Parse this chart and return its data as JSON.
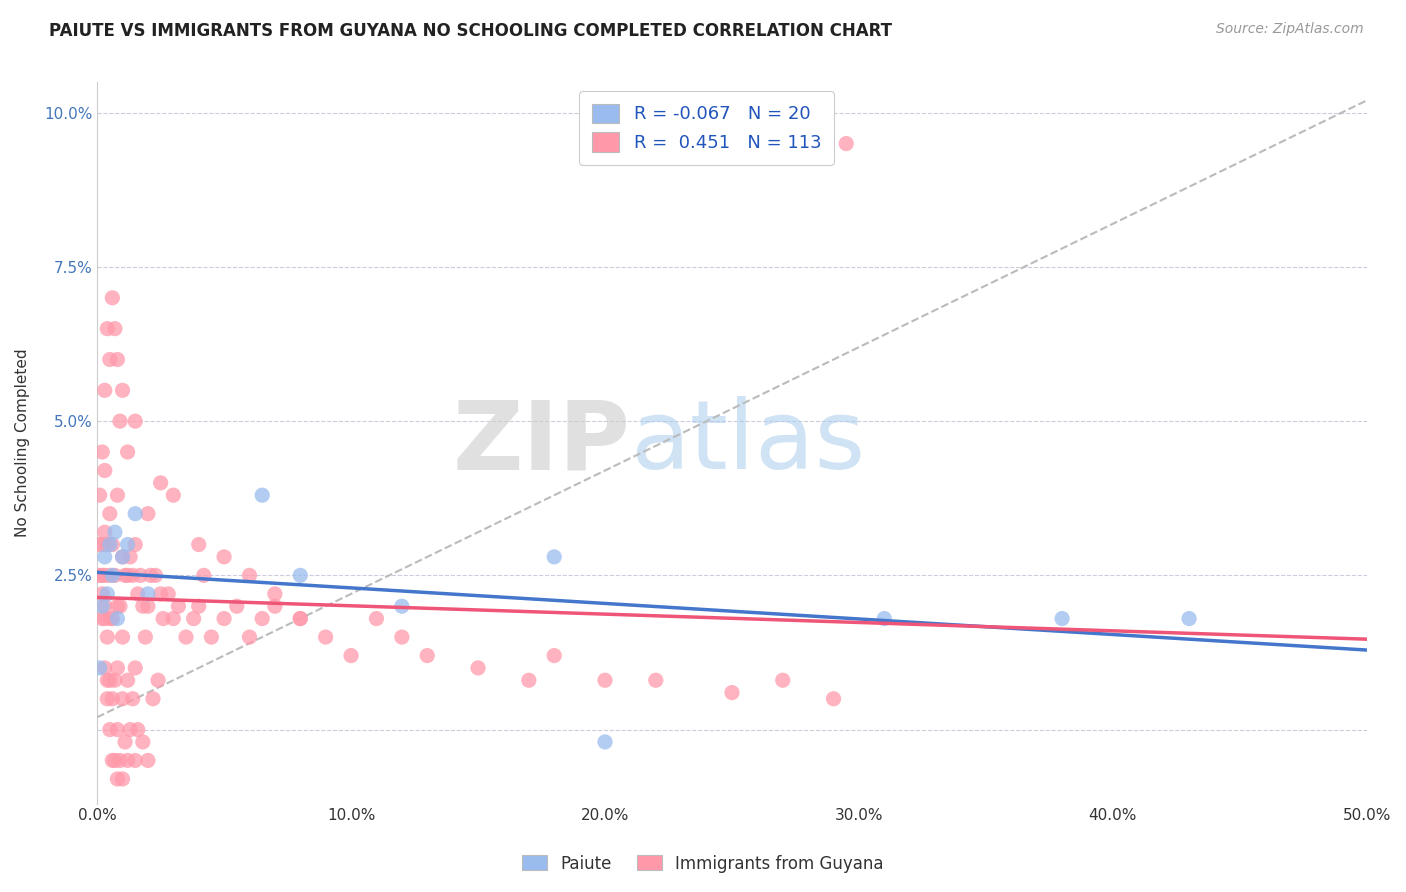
{
  "title": "PAIUTE VS IMMIGRANTS FROM GUYANA NO SCHOOLING COMPLETED CORRELATION CHART",
  "source": "Source: ZipAtlas.com",
  "ylabel": "No Schooling Completed",
  "xlim": [
    0.0,
    0.5
  ],
  "ylim": [
    -0.012,
    0.105
  ],
  "xticks": [
    0.0,
    0.1,
    0.2,
    0.3,
    0.4,
    0.5
  ],
  "xtick_labels": [
    "0.0%",
    "10.0%",
    "20.0%",
    "30.0%",
    "40.0%",
    "50.0%"
  ],
  "yticks": [
    0.0,
    0.025,
    0.05,
    0.075,
    0.1
  ],
  "ytick_labels": [
    "",
    "2.5%",
    "5.0%",
    "7.5%",
    "10.0%"
  ],
  "paiute_color": "#99BBEE",
  "guyana_color": "#FF99AA",
  "paiute_line_color": "#4477CC",
  "guyana_line_color": "#EE5577",
  "R_paiute": -0.067,
  "N_paiute": 20,
  "R_guyana": 0.451,
  "N_guyana": 113,
  "legend_labels": [
    "Paiute",
    "Immigrants from Guyana"
  ],
  "watermark_zip": "ZIP",
  "watermark_atlas": "atlas",
  "background_color": "#FFFFFF",
  "grid_color": "#CCCCDD",
  "title_fontsize": 12,
  "source_fontsize": 10,
  "paiute_x": [
    0.001,
    0.002,
    0.003,
    0.004,
    0.005,
    0.006,
    0.007,
    0.008,
    0.01,
    0.012,
    0.015,
    0.02,
    0.065,
    0.08,
    0.12,
    0.18,
    0.2,
    0.31,
    0.38,
    0.43
  ],
  "paiute_y": [
    0.01,
    0.02,
    0.028,
    0.022,
    0.03,
    0.025,
    0.032,
    0.018,
    0.028,
    0.03,
    0.035,
    0.022,
    0.038,
    0.025,
    0.02,
    0.028,
    -0.002,
    0.018,
    0.018,
    0.018
  ],
  "guyana_x": [
    0.001,
    0.001,
    0.001,
    0.002,
    0.002,
    0.002,
    0.002,
    0.003,
    0.003,
    0.003,
    0.003,
    0.003,
    0.003,
    0.004,
    0.004,
    0.004,
    0.004,
    0.005,
    0.005,
    0.005,
    0.005,
    0.005,
    0.006,
    0.006,
    0.006,
    0.006,
    0.007,
    0.007,
    0.007,
    0.008,
    0.008,
    0.008,
    0.008,
    0.008,
    0.009,
    0.009,
    0.01,
    0.01,
    0.01,
    0.01,
    0.011,
    0.011,
    0.012,
    0.012,
    0.012,
    0.013,
    0.013,
    0.014,
    0.014,
    0.015,
    0.015,
    0.015,
    0.016,
    0.016,
    0.017,
    0.018,
    0.018,
    0.019,
    0.02,
    0.02,
    0.021,
    0.022,
    0.023,
    0.024,
    0.025,
    0.026,
    0.028,
    0.03,
    0.032,
    0.035,
    0.038,
    0.04,
    0.042,
    0.045,
    0.05,
    0.055,
    0.06,
    0.065,
    0.07,
    0.08,
    0.09,
    0.1,
    0.11,
    0.12,
    0.13,
    0.15,
    0.17,
    0.18,
    0.2,
    0.22,
    0.25,
    0.27,
    0.29,
    0.002,
    0.003,
    0.004,
    0.005,
    0.006,
    0.007,
    0.008,
    0.009,
    0.01,
    0.012,
    0.015,
    0.02,
    0.025,
    0.03,
    0.04,
    0.05,
    0.06,
    0.07,
    0.08,
    0.295
  ],
  "guyana_y": [
    0.025,
    0.03,
    0.038,
    0.018,
    0.022,
    0.025,
    0.03,
    0.01,
    0.018,
    0.02,
    0.025,
    0.032,
    0.042,
    0.005,
    0.008,
    0.015,
    0.03,
    0.0,
    0.008,
    0.018,
    0.025,
    0.035,
    -0.005,
    0.005,
    0.018,
    0.03,
    -0.005,
    0.008,
    0.025,
    -0.008,
    0.0,
    0.01,
    0.02,
    0.038,
    -0.005,
    0.02,
    -0.008,
    0.005,
    0.015,
    0.028,
    -0.002,
    0.025,
    -0.005,
    0.008,
    0.025,
    0.0,
    0.028,
    0.005,
    0.025,
    -0.005,
    0.01,
    0.03,
    0.0,
    0.022,
    0.025,
    -0.002,
    0.02,
    0.015,
    -0.005,
    0.02,
    0.025,
    0.005,
    0.025,
    0.008,
    0.022,
    0.018,
    0.022,
    0.018,
    0.02,
    0.015,
    0.018,
    0.02,
    0.025,
    0.015,
    0.018,
    0.02,
    0.015,
    0.018,
    0.02,
    0.018,
    0.015,
    0.012,
    0.018,
    0.015,
    0.012,
    0.01,
    0.008,
    0.012,
    0.008,
    0.008,
    0.006,
    0.008,
    0.005,
    0.045,
    0.055,
    0.065,
    0.06,
    0.07,
    0.065,
    0.06,
    0.05,
    0.055,
    0.045,
    0.05,
    0.035,
    0.04,
    0.038,
    0.03,
    0.028,
    0.025,
    0.022,
    0.018,
    0.095
  ]
}
